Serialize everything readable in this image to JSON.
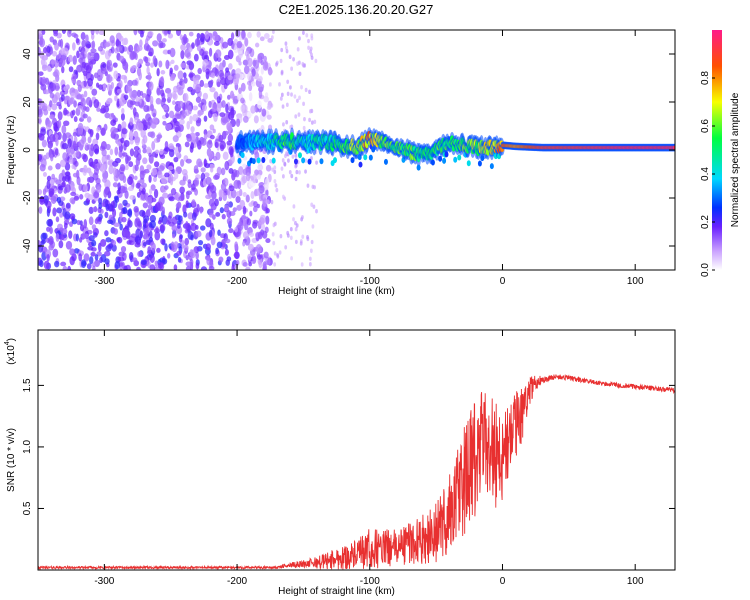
{
  "figure": {
    "title": "C2E1.2025.136.20.20.G27"
  },
  "chart_data": [
    {
      "type": "heatmap",
      "xlabel": "Height of straight line (km)",
      "ylabel": "Frequency (Hz)",
      "xlim": [
        -350,
        130
      ],
      "ylim": [
        -50,
        50
      ],
      "xticks": [
        -300,
        -200,
        -100,
        0,
        100
      ],
      "yticks": [
        -40,
        -20,
        0,
        20,
        40
      ],
      "grid": false,
      "colorbar": {
        "label": "Normalized spectral amplitude",
        "range": [
          0,
          1
        ],
        "ticks": [
          "0.0",
          "0.2",
          "0.4",
          "0.6",
          "0.8"
        ]
      },
      "noise_region": {
        "x": [
          -350,
          -175
        ],
        "y": [
          -50,
          50
        ]
      },
      "sparse_region": {
        "x": [
          -175,
          -140
        ],
        "y": [
          -50,
          50
        ]
      },
      "signal_track": {
        "x": [
          -200,
          -180,
          -160,
          -150,
          -140,
          -130,
          -120,
          -110,
          -100,
          -90,
          -80,
          -70,
          -60,
          -50,
          -40,
          -30,
          -20,
          -10,
          0,
          10,
          30,
          60,
          90,
          130
        ],
        "center_hz": [
          3,
          3,
          4,
          3,
          3,
          3,
          2,
          1,
          5,
          3,
          1,
          -1,
          -2,
          0,
          3,
          2,
          1,
          1,
          2,
          1.5,
          1,
          1,
          1,
          1
        ],
        "amplitude": [
          0.3,
          0.45,
          0.6,
          0.45,
          0.5,
          0.55,
          0.6,
          0.7,
          0.85,
          0.7,
          0.6,
          0.65,
          0.55,
          0.6,
          0.6,
          0.65,
          0.7,
          0.8,
          0.85,
          0.8,
          0.9,
          0.92,
          0.95,
          0.95
        ]
      }
    },
    {
      "type": "line",
      "xlabel": "Height of straight line (km)",
      "ylabel": "SNR (10 * v/v)",
      "scale_label": "(x10",
      "scale_exponent": "4",
      "xlim": [
        -350,
        130
      ],
      "ylim": [
        0,
        1.95
      ],
      "xticks": [
        -300,
        -200,
        -100,
        0,
        100
      ],
      "yticks": [
        "0.5",
        "1.0",
        "1.5"
      ],
      "ytick_values": [
        0.5,
        1.0,
        1.5
      ],
      "color": "#e83030",
      "series": [
        {
          "x": [
            -350,
            -300,
            -250,
            -200,
            -170,
            -160,
            -150,
            -140,
            -130,
            -120,
            -110,
            -100,
            -90,
            -80,
            -70,
            -60,
            -50,
            -40,
            -30,
            -20,
            -15,
            -10,
            -5,
            0,
            5,
            10,
            15,
            20,
            25,
            30,
            40,
            50,
            60,
            80,
            100,
            120,
            130
          ],
          "y": [
            0.02,
            0.02,
            0.02,
            0.02,
            0.02,
            0.04,
            0.05,
            0.06,
            0.08,
            0.1,
            0.12,
            0.16,
            0.18,
            0.18,
            0.22,
            0.25,
            0.3,
            0.45,
            0.7,
            0.9,
            1.0,
            1.05,
            0.95,
            0.9,
            1.05,
            1.15,
            1.3,
            1.45,
            1.52,
            1.55,
            1.57,
            1.56,
            1.54,
            1.51,
            1.49,
            1.47,
            1.46
          ],
          "noise_amplitude": [
            0.01,
            0.01,
            0.01,
            0.01,
            0.01,
            0.02,
            0.03,
            0.05,
            0.08,
            0.1,
            0.12,
            0.18,
            0.15,
            0.15,
            0.18,
            0.2,
            0.25,
            0.35,
            0.45,
            0.5,
            0.5,
            0.45,
            0.45,
            0.4,
            0.35,
            0.3,
            0.25,
            0.12,
            0.06,
            0.03,
            0.02,
            0.02,
            0.02,
            0.02,
            0.02,
            0.02,
            0.02
          ]
        }
      ]
    }
  ]
}
